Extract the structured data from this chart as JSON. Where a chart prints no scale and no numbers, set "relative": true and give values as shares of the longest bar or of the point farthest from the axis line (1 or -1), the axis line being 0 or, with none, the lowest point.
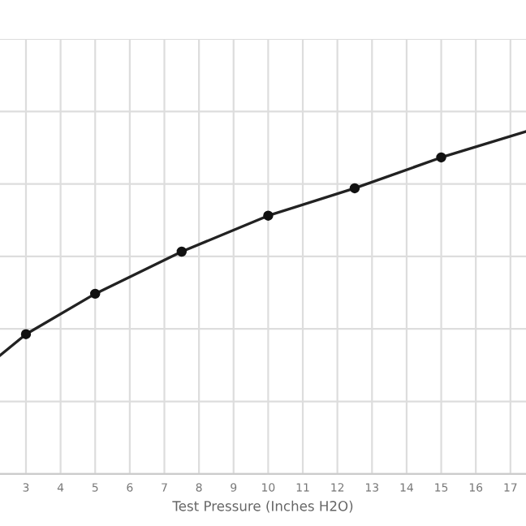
{
  "chart_data": {
    "type": "line",
    "xlabel": "Test Pressure (Inches H2O)",
    "relative": true,
    "xlim": [
      2.25,
      17.45
    ],
    "xticks": [
      3,
      4,
      5,
      6,
      7,
      8,
      9,
      10,
      11,
      12,
      13,
      14,
      15,
      16,
      17
    ],
    "grid": true,
    "line_style": "solid",
    "series": [
      {
        "color": "#222222",
        "marker": "none",
        "x": [
          2.25,
          3,
          5,
          7.5,
          10,
          12.5,
          15,
          17.45
        ],
        "values": [
          0.346,
          0.408,
          0.526,
          0.649,
          0.754,
          0.834,
          0.924,
          1
        ]
      },
      {
        "type": "scatter",
        "color": "#111111",
        "marker": "circle",
        "x": [
          3,
          5,
          7.5,
          10,
          12.5,
          15
        ],
        "values": [
          0.408,
          0.526,
          0.649,
          0.754,
          0.834,
          0.924
        ]
      }
    ]
  }
}
